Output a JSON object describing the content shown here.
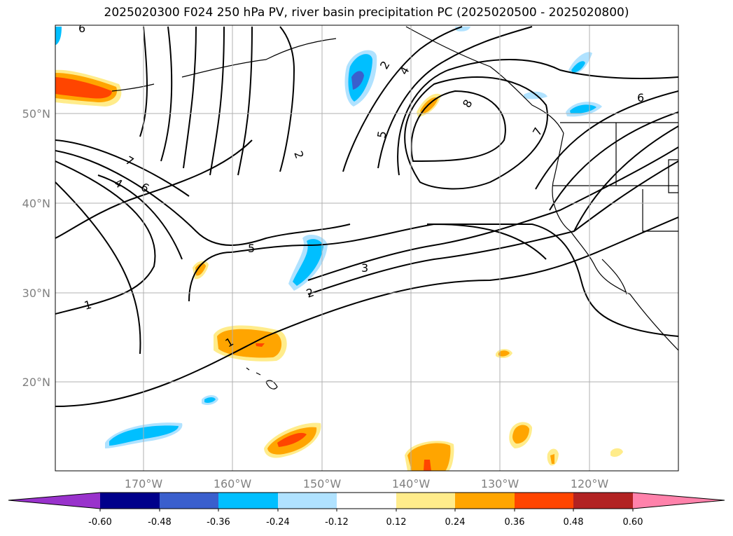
{
  "title": "2025020300 F024 250 hPa PV, river basin precipitation PC (2025020500 - 2025020800)",
  "lat_labels": [
    "50°N",
    "40°N",
    "30°N",
    "20°N"
  ],
  "lon_labels": [
    "170°W",
    "160°W",
    "150°W",
    "140°W",
    "130°W",
    "120°W"
  ],
  "colorbar": {
    "tick_labels": [
      "-0.60",
      "-0.48",
      "-0.36",
      "-0.24",
      "-0.12",
      "0.12",
      "0.24",
      "0.36",
      "0.48",
      "0.60"
    ],
    "colors": [
      "#9932CC",
      "#00008B",
      "#3A5FCD",
      "#00BFFF",
      "#B0E2FF",
      "#FFFFFF",
      "#FFEC8B",
      "#FFA500",
      "#FF4500",
      "#B22222",
      "#FF82AB"
    ]
  },
  "contour_labels": [
    "6",
    "7",
    "4",
    "6",
    "2",
    "2",
    "4",
    "5",
    "5",
    "8",
    "7",
    "6",
    "3",
    "2",
    "1",
    "1"
  ]
}
